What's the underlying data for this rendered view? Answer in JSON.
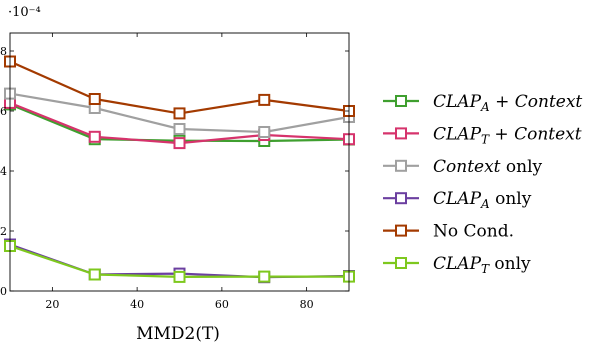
{
  "chart_data": {
    "type": "line",
    "xlabel": "MMD2(T)",
    "ylabel": "",
    "y_scale_label": "·10⁻⁴",
    "xlim": [
      10,
      90
    ],
    "ylim": [
      0,
      8.6
    ],
    "xticks": [
      20,
      40,
      60,
      80
    ],
    "yticks": [
      0,
      2,
      4,
      6,
      8
    ],
    "grid": false,
    "legend_position": "right",
    "x": [
      10,
      30,
      50,
      70,
      90
    ],
    "series": [
      {
        "name": "CLAP_A + Context",
        "legend": {
          "base": "CLAP",
          "sub": "A",
          "rest": " + ",
          "italic_rest": "Context",
          "tail": ""
        },
        "color": "#3f9f2f",
        "values": [
          6.22,
          5.06,
          5.01,
          5.0,
          5.05
        ]
      },
      {
        "name": "CLAP_T + Context",
        "legend": {
          "base": "CLAP",
          "sub": "T",
          "rest": " + ",
          "italic_rest": "Context",
          "tail": ""
        },
        "color": "#d6336c",
        "values": [
          6.27,
          5.14,
          4.93,
          5.2,
          5.06
        ]
      },
      {
        "name": "Context only",
        "legend": {
          "base": "",
          "sub": "",
          "rest": "",
          "italic_rest": "Context",
          "tail": " only"
        },
        "color": "#a0a0a0",
        "values": [
          6.58,
          6.1,
          5.4,
          5.3,
          5.8
        ]
      },
      {
        "name": "CLAP_A only",
        "legend": {
          "base": "CLAP",
          "sub": "A",
          "rest": "",
          "italic_rest": "",
          "tail": " only"
        },
        "color": "#6b3fa0",
        "values": [
          1.55,
          0.55,
          0.58,
          0.46,
          0.5
        ]
      },
      {
        "name": "No Cond.",
        "legend": {
          "base": "",
          "sub": "",
          "rest": "",
          "italic_rest": "",
          "tail": "No Cond."
        },
        "color": "#a33a00",
        "values": [
          7.65,
          6.4,
          5.92,
          6.37,
          6.0
        ]
      },
      {
        "name": "CLAP_T only",
        "legend": {
          "base": "CLAP",
          "sub": "T",
          "rest": "",
          "italic_rest": "",
          "tail": " only"
        },
        "color": "#7ec81e",
        "values": [
          1.5,
          0.55,
          0.47,
          0.48,
          0.48
        ]
      }
    ]
  }
}
